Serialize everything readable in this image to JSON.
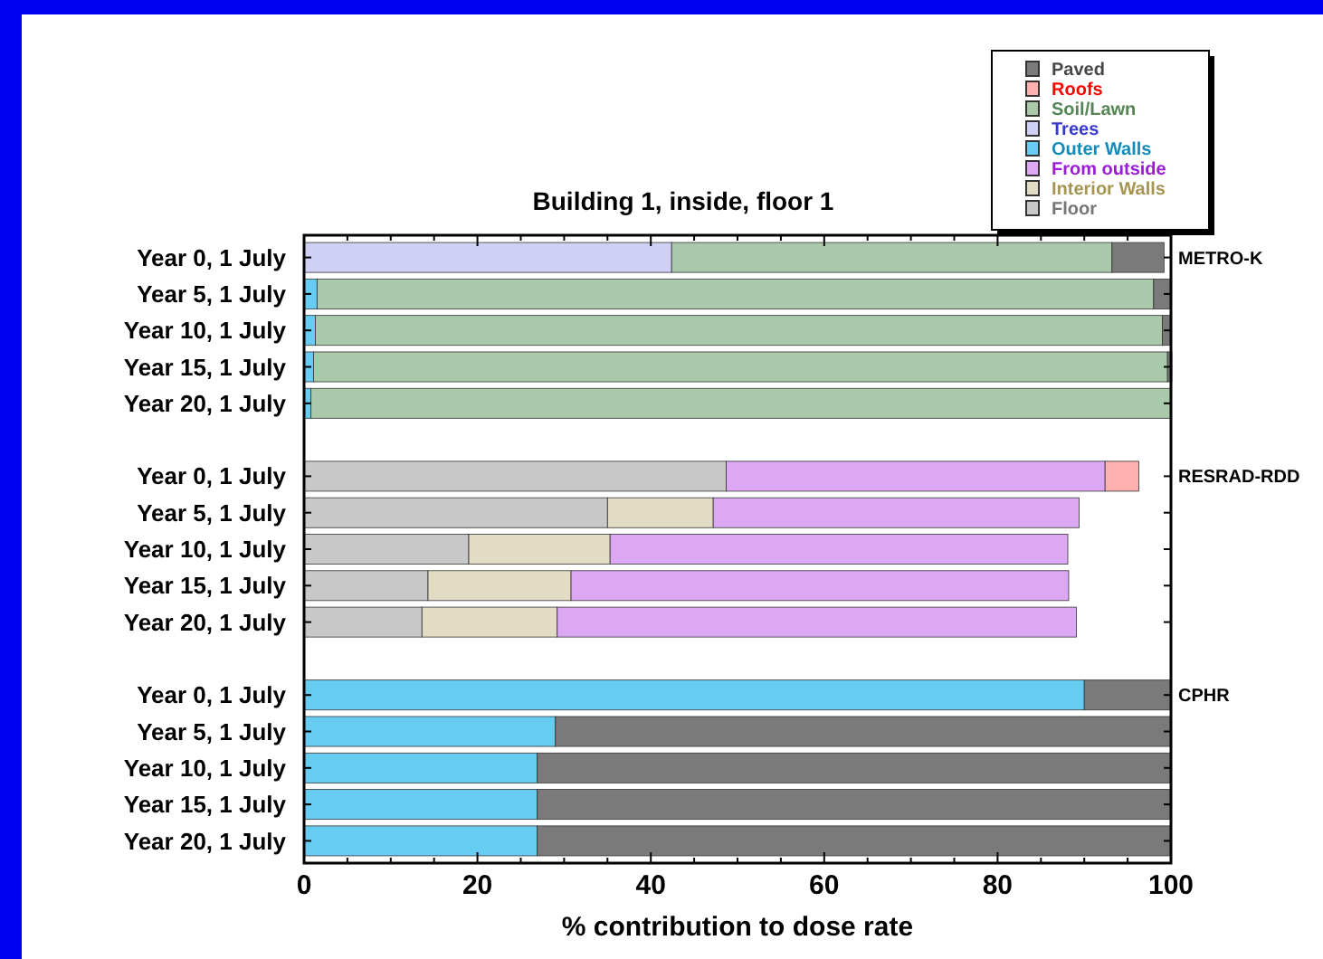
{
  "chart_data": {
    "type": "bar",
    "orientation": "horizontal",
    "stacked": true,
    "title": "Building 1, inside, floor 1",
    "xlabel": "% contribution to dose rate",
    "categories": [
      "Year 0, 1 July",
      "Year 5, 1 July",
      "Year 10, 1 July",
      "Year 15, 1 July",
      "Year 20, 1 July",
      null,
      "Year 0, 1 July",
      "Year 5, 1 July",
      "Year 10, 1 July",
      "Year 15, 1 July",
      "Year 20, 1 July",
      null,
      "Year 0, 1 July",
      "Year 5, 1 July",
      "Year 10, 1 July",
      "Year 15, 1 July",
      "Year 20, 1 July"
    ],
    "series": [
      {
        "name": "Floor",
        "color": "#c8c8c8",
        "values": [
          null,
          null,
          null,
          null,
          null,
          null,
          48.7,
          35.0,
          19.0,
          14.3,
          13.6,
          null,
          null,
          null,
          null,
          null,
          null
        ]
      },
      {
        "name": "Interior Walls",
        "color": "#e2dcc4",
        "values": [
          null,
          null,
          null,
          null,
          null,
          null,
          null,
          12.2,
          16.3,
          16.5,
          15.6,
          null,
          null,
          null,
          null,
          null,
          null
        ]
      },
      {
        "name": "From outside",
        "color": "#dca8f4",
        "values": [
          null,
          null,
          null,
          null,
          null,
          null,
          43.7,
          42.2,
          52.8,
          57.4,
          59.9,
          null,
          null,
          null,
          null,
          null,
          null
        ]
      },
      {
        "name": "Outer Walls",
        "color": "#66ccf2",
        "values": [
          null,
          1.5,
          1.3,
          1.1,
          0.8,
          null,
          null,
          null,
          null,
          null,
          null,
          null,
          90.0,
          29.0,
          26.9,
          26.9,
          26.9
        ]
      },
      {
        "name": "Trees",
        "color": "#d0d0f4",
        "values": [
          42.4,
          null,
          null,
          null,
          null,
          null,
          null,
          null,
          null,
          null,
          null,
          null,
          null,
          null,
          null,
          null,
          null
        ]
      },
      {
        "name": "Soil/Lawn",
        "color": "#aac8aa",
        "values": [
          50.8,
          96.5,
          97.7,
          98.5,
          99.2,
          null,
          null,
          null,
          null,
          null,
          null,
          null,
          null,
          null,
          null,
          null,
          null
        ]
      },
      {
        "name": "Roofs",
        "color": "#ffb0b0",
        "values": [
          null,
          null,
          null,
          null,
          null,
          null,
          3.9,
          null,
          null,
          null,
          null,
          null,
          null,
          null,
          null,
          null,
          null
        ]
      },
      {
        "name": "Paved",
        "color": "#7a7a7a",
        "values": [
          6.0,
          2.0,
          1.0,
          0.5,
          null,
          null,
          null,
          null,
          null,
          null,
          null,
          null,
          10.0,
          71.0,
          73.1,
          73.1,
          73.1
        ]
      }
    ],
    "xlim": [
      0,
      100
    ],
    "xticks": [
      0,
      {
        "value": 5,
        "label": null
      },
      {
        "value": 10,
        "label": null
      },
      {
        "value": 15,
        "label": null
      },
      20,
      {
        "value": 25,
        "label": null
      },
      {
        "value": 30,
        "label": null
      },
      {
        "value": 35,
        "label": null
      },
      40,
      {
        "value": 45,
        "label": null
      },
      {
        "value": 50,
        "label": null
      },
      {
        "value": 55,
        "label": null
      },
      60,
      {
        "value": 65,
        "label": null
      },
      {
        "value": 70,
        "label": null
      },
      {
        "value": 75,
        "label": null
      },
      80,
      {
        "value": 85,
        "label": null
      },
      {
        "value": 90,
        "label": null
      },
      {
        "value": 95,
        "label": null
      },
      100
    ],
    "annotations": [
      "METRO-K",
      "RESRAD-RDD",
      "CPHR"
    ],
    "legend": "top right",
    "grid": false
  }
}
